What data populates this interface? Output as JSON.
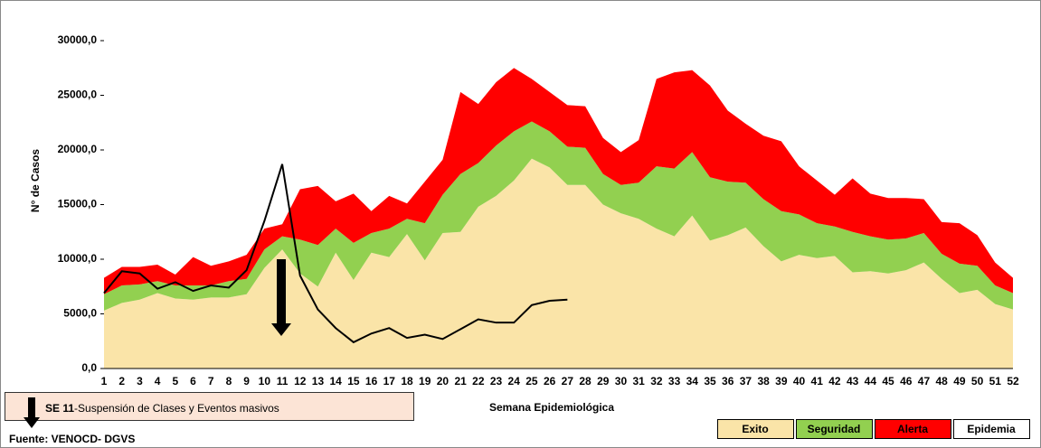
{
  "chart_data": {
    "type": "area",
    "y_label": "N° de Casos",
    "x_label": "Semana Epidemiológica",
    "annotation": {
      "week": "SE 11",
      "text": "-Suspensión de Clases  y Eventos masivos"
    },
    "source": "Fuente: VENOCD- DGVS",
    "categories": [
      1,
      2,
      3,
      4,
      5,
      6,
      7,
      8,
      9,
      10,
      11,
      12,
      13,
      14,
      15,
      16,
      17,
      18,
      19,
      20,
      21,
      22,
      23,
      24,
      25,
      26,
      27,
      28,
      29,
      30,
      31,
      32,
      33,
      34,
      35,
      36,
      37,
      38,
      39,
      40,
      41,
      42,
      43,
      44,
      45,
      46,
      47,
      48,
      49,
      50,
      51,
      52
    ],
    "ylim": [
      0,
      30000
    ],
    "yticks": [
      {
        "value": 0,
        "label": "0,0"
      },
      {
        "value": 5000,
        "label": "5000,0"
      },
      {
        "value": 10000,
        "label": "10000,0"
      },
      {
        "value": 15000,
        "label": "15000,0"
      },
      {
        "value": 20000,
        "label": "20000,0"
      },
      {
        "value": 25000,
        "label": "25000,0"
      },
      {
        "value": 30000,
        "label": "30000,0"
      }
    ],
    "series": [
      {
        "name": "Exito",
        "color": "#fae4a8",
        "style": "area",
        "values": [
          5300,
          6000,
          6300,
          6900,
          6400,
          6300,
          6500,
          6500,
          6800,
          9200,
          10900,
          8700,
          7500,
          10600,
          8100,
          10600,
          10200,
          12300,
          9900,
          12400,
          12500,
          14800,
          15800,
          17200,
          19200,
          18400,
          16800,
          16800,
          15000,
          14200,
          13700,
          12800,
          12100,
          14000,
          11700,
          12200,
          12900,
          11200,
          9800,
          10400,
          10100,
          10300,
          8800,
          8900,
          8700,
          9000,
          9700,
          8200,
          6900,
          7200,
          5900,
          5400
        ]
      },
      {
        "name": "Seguridad",
        "color": "#92d050",
        "style": "area",
        "values": [
          1500,
          1600,
          1400,
          1100,
          1200,
          1300,
          1100,
          1500,
          1400,
          1700,
          1200,
          3100,
          3800,
          2200,
          3400,
          1800,
          2600,
          1400,
          3400,
          3500,
          5300,
          4000,
          4600,
          4500,
          3400,
          3300,
          3500,
          3400,
          2800,
          2600,
          3300,
          5700,
          6200,
          5800,
          5800,
          4900,
          4100,
          4300,
          4600,
          3700,
          3200,
          2700,
          3700,
          3200,
          3100,
          2900,
          2700,
          2300,
          2700,
          2200,
          1700,
          1500
        ]
      },
      {
        "name": "Alerta",
        "color": "#ff0000",
        "style": "area",
        "values": [
          1500,
          1700,
          1600,
          1500,
          1000,
          2600,
          1800,
          1800,
          2200,
          1900,
          1100,
          4600,
          5400,
          2500,
          4500,
          2000,
          3000,
          1400,
          3800,
          3200,
          7500,
          5400,
          5800,
          5800,
          3900,
          3600,
          3800,
          3800,
          3300,
          3000,
          3900,
          8000,
          8800,
          7500,
          8400,
          6500,
          5400,
          5800,
          6400,
          4400,
          3900,
          2900,
          4900,
          3900,
          3800,
          3700,
          3100,
          2900,
          3700,
          2800,
          2100,
          1400
        ]
      },
      {
        "name": "Epidemia",
        "color": "#000000",
        "style": "line",
        "values": [
          6900,
          8900,
          8700,
          7300,
          7900,
          7100,
          7600,
          7400,
          9000,
          13500,
          18700,
          8500,
          5400,
          3700,
          2400,
          3200,
          3700,
          2800,
          3100,
          2700,
          3600,
          4500,
          4200,
          4200,
          5800,
          6200,
          6300,
          null,
          null,
          null,
          null,
          null,
          null,
          null,
          null,
          null,
          null,
          null,
          null,
          null,
          null,
          null,
          null,
          null,
          null,
          null,
          null,
          null,
          null,
          null,
          null,
          null
        ]
      }
    ]
  }
}
